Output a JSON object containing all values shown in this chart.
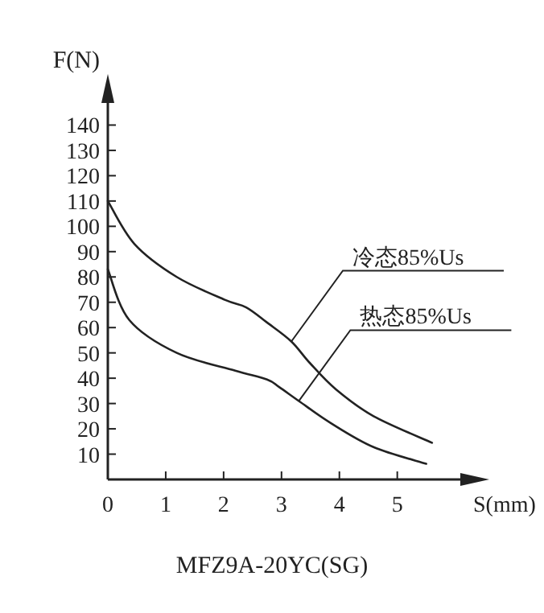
{
  "chart_data": {
    "type": "line",
    "title": "MFZ9A-20YC(SG)",
    "xlabel": "S(mm)",
    "ylabel": "F(N)",
    "series": [
      {
        "name": "冷态85%Us",
        "color": "#222222",
        "x": [
          0,
          0.46,
          1.19,
          2.02,
          2.39,
          2.75,
          3.17,
          3.49,
          3.94,
          4.59,
          5.6
        ],
        "values": [
          110,
          93,
          80,
          71,
          68,
          62,
          54.5,
          46,
          35.6,
          25,
          14.5
        ]
      },
      {
        "name": "热态85%Us",
        "color": "#222222",
        "x": [
          0,
          0.37,
          1.19,
          2.2,
          2.75,
          2.96,
          3.3,
          3.85,
          4.59,
          5.5
        ],
        "values": [
          83,
          63,
          50,
          43,
          39.5,
          36.5,
          31,
          22.3,
          12.8,
          6.2
        ]
      }
    ],
    "xlim": [
      0,
      6.2
    ],
    "ylim": [
      0,
      150
    ],
    "xticks": [
      0,
      1,
      2,
      3,
      4,
      5
    ],
    "yticks": [
      10,
      20,
      30,
      40,
      50,
      60,
      70,
      80,
      90,
      100,
      110,
      120,
      130,
      140
    ],
    "marker": "none",
    "line_style": "solid"
  }
}
